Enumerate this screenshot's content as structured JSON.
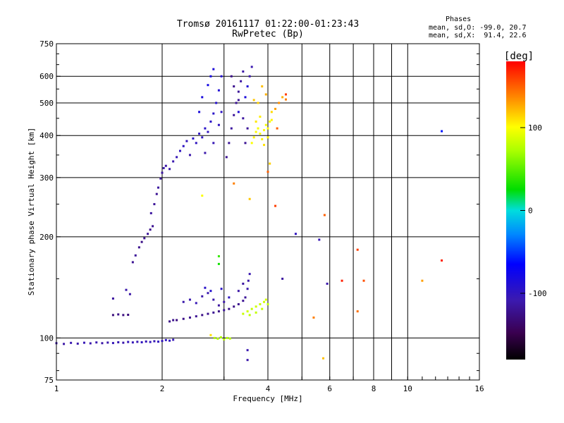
{
  "chart_data": {
    "type": "scatter",
    "title": "Tromsø 20161117 01:22:00-01:23:43",
    "subtitle": "RwPretec (Bp)",
    "xlabel": "Frequency [MHz]",
    "ylabel": "Stationary phase Virtual Height [km]",
    "x_scale": "log",
    "y_scale": "log",
    "xlim": [
      1,
      16
    ],
    "ylim": [
      75,
      750
    ],
    "x_ticks": [
      1,
      2,
      4,
      6,
      8,
      10,
      16
    ],
    "y_ticks": [
      75,
      100,
      200,
      300,
      400,
      500,
      600,
      750
    ],
    "grid": true,
    "stats": {
      "heading": "Phases",
      "line1": "mean, sd,O: -99.0, 20.7",
      "line2": "mean, sd,X:  91.4, 22.6"
    },
    "colorbar": {
      "label": "[deg]",
      "range": [
        -180,
        180
      ],
      "ticks": [
        -100,
        0,
        100
      ]
    },
    "series": [
      {
        "points": [
          [
            1.0,
            96.5,
            -110
          ],
          [
            1.05,
            96.0,
            -112
          ],
          [
            1.1,
            96.7,
            -108
          ],
          [
            1.15,
            96.2,
            -110
          ],
          [
            1.2,
            96.8,
            -105
          ],
          [
            1.25,
            96.4,
            -110
          ],
          [
            1.3,
            97.0,
            -108
          ],
          [
            1.35,
            96.5,
            -112
          ],
          [
            1.4,
            96.9,
            -109
          ],
          [
            1.45,
            96.6,
            -104
          ],
          [
            1.5,
            97.1,
            -106
          ],
          [
            1.55,
            96.8,
            -110
          ],
          [
            1.6,
            97.3,
            -102
          ],
          [
            1.65,
            97.0,
            -104
          ],
          [
            1.7,
            97.4,
            -105
          ],
          [
            1.75,
            97.1,
            -100
          ],
          [
            1.8,
            97.6,
            -104
          ],
          [
            1.85,
            97.3,
            -102
          ],
          [
            1.9,
            97.8,
            -106
          ],
          [
            1.95,
            97.5,
            -100
          ],
          [
            2.0,
            98.0,
            -102
          ],
          [
            2.05,
            98.6,
            -98
          ],
          [
            2.1,
            98.2,
            -100
          ],
          [
            2.15,
            98.8,
            -104
          ],
          [
            1.45,
            117,
            -130
          ],
          [
            1.5,
            117.5,
            -125
          ],
          [
            1.55,
            117,
            -128
          ],
          [
            1.6,
            117.2,
            -130
          ],
          [
            1.45,
            131,
            -115
          ],
          [
            1.58,
            139,
            -110
          ],
          [
            1.62,
            135,
            -112
          ],
          [
            1.65,
            168,
            -120
          ],
          [
            1.68,
            176,
            -118
          ],
          [
            1.72,
            186,
            -122
          ],
          [
            1.75,
            193,
            -125
          ],
          [
            1.78,
            198,
            -120
          ],
          [
            1.82,
            204,
            -118
          ],
          [
            1.85,
            210,
            -122
          ],
          [
            1.88,
            215,
            -120
          ],
          [
            1.86,
            235,
            -115
          ],
          [
            1.9,
            250,
            -118
          ],
          [
            1.93,
            268,
            -120
          ],
          [
            1.95,
            280,
            -115
          ],
          [
            1.98,
            298,
            -118
          ],
          [
            2.0,
            310,
            -115
          ],
          [
            2.02,
            320,
            -110
          ],
          [
            2.05,
            325,
            -112
          ],
          [
            2.1,
            318,
            -110
          ],
          [
            2.15,
            335,
            -108
          ],
          [
            2.2,
            345,
            -105
          ],
          [
            2.25,
            360,
            -100
          ],
          [
            2.3,
            372,
            -98
          ],
          [
            2.35,
            385,
            -102
          ],
          [
            2.4,
            350,
            -110
          ],
          [
            2.45,
            392,
            -95
          ],
          [
            2.5,
            380,
            -100
          ],
          [
            2.55,
            405,
            -98
          ],
          [
            2.6,
            395,
            -100
          ],
          [
            2.65,
            420,
            -95
          ],
          [
            2.7,
            410,
            -100
          ],
          [
            2.75,
            440,
            -96
          ],
          [
            2.8,
            465,
            -95
          ],
          [
            2.85,
            500,
            -92
          ],
          [
            2.9,
            545,
            -88
          ],
          [
            2.95,
            600,
            -90
          ],
          [
            2.55,
            470,
            -85
          ],
          [
            2.7,
            565,
            -80
          ],
          [
            2.75,
            600,
            -82
          ],
          [
            2.8,
            630,
            -86
          ],
          [
            2.6,
            520,
            -84
          ],
          [
            2.65,
            355,
            -110
          ],
          [
            2.8,
            380,
            -105
          ],
          [
            2.9,
            430,
            -100
          ],
          [
            2.95,
            470,
            -98
          ],
          [
            3.05,
            345,
            -120
          ],
          [
            3.1,
            380,
            -118
          ],
          [
            3.15,
            420,
            -115
          ],
          [
            3.2,
            460,
            -118
          ],
          [
            3.25,
            500,
            -120
          ],
          [
            3.3,
            540,
            -118
          ],
          [
            3.35,
            580,
            -115
          ],
          [
            3.4,
            620,
            -112
          ],
          [
            3.15,
            600,
            -125
          ],
          [
            3.2,
            560,
            -122
          ],
          [
            3.3,
            510,
            -118
          ],
          [
            3.4,
            450,
            -115
          ],
          [
            3.45,
            380,
            -120
          ],
          [
            3.5,
            420,
            -118
          ],
          [
            3.55,
            600,
            -110
          ],
          [
            3.6,
            640,
            -108
          ],
          [
            3.3,
            470,
            -90
          ],
          [
            3.45,
            520,
            -85
          ],
          [
            3.5,
            560,
            -88
          ],
          [
            2.1,
            112,
            -125
          ],
          [
            2.15,
            113,
            -122
          ],
          [
            2.2,
            113,
            -128
          ],
          [
            2.3,
            114,
            -125
          ],
          [
            2.4,
            115,
            -122
          ],
          [
            2.5,
            116,
            -120
          ],
          [
            2.6,
            117,
            -125
          ],
          [
            2.7,
            118,
            -122
          ],
          [
            2.8,
            119,
            -120
          ],
          [
            2.9,
            120,
            -125
          ],
          [
            3.0,
            121,
            -118
          ],
          [
            3.1,
            122,
            -122
          ],
          [
            3.2,
            124,
            -125
          ],
          [
            3.3,
            126,
            -122
          ],
          [
            3.4,
            129,
            -120
          ],
          [
            3.45,
            132,
            -118
          ],
          [
            2.3,
            128,
            -110
          ],
          [
            2.4,
            130,
            -108
          ],
          [
            2.5,
            127,
            -105
          ],
          [
            2.6,
            133,
            -110
          ],
          [
            2.7,
            136,
            -108
          ],
          [
            2.8,
            130,
            -110
          ],
          [
            2.9,
            125,
            -115
          ],
          [
            3.0,
            128,
            -112
          ],
          [
            3.5,
            140,
            -110
          ],
          [
            3.52,
            148,
            -112
          ],
          [
            3.55,
            155,
            -108
          ],
          [
            3.4,
            145,
            -115
          ],
          [
            3.3,
            138,
            -112
          ],
          [
            2.65,
            141,
            -95
          ],
          [
            2.75,
            138,
            -92
          ],
          [
            2.95,
            140,
            -96
          ],
          [
            3.1,
            132,
            -98
          ],
          [
            4.8,
            204,
            -100
          ],
          [
            5.6,
            196,
            -105
          ],
          [
            5.9,
            145,
            -110
          ],
          [
            4.4,
            150,
            -115
          ],
          [
            3.5,
            86,
            -110
          ],
          [
            3.5,
            92,
            -108
          ],
          [
            12.5,
            412,
            -60
          ]
        ]
      },
      {
        "points": [
          [
            3.6,
            380,
            100
          ],
          [
            3.65,
            395,
            105
          ],
          [
            3.7,
            410,
            102
          ],
          [
            3.75,
            420,
            98
          ],
          [
            3.8,
            405,
            100
          ],
          [
            3.85,
            390,
            104
          ],
          [
            3.9,
            415,
            100
          ],
          [
            3.95,
            430,
            98
          ],
          [
            4.0,
            420,
            102
          ],
          [
            4.05,
            440,
            100
          ],
          [
            4.1,
            445,
            104
          ],
          [
            3.7,
            440,
            108
          ],
          [
            3.8,
            455,
            106
          ],
          [
            3.9,
            375,
            110
          ],
          [
            4.0,
            395,
            105
          ],
          [
            4.1,
            470,
            112
          ],
          [
            3.65,
            510,
            118
          ],
          [
            3.75,
            500,
            115
          ],
          [
            3.85,
            560,
            120
          ],
          [
            3.95,
            530,
            125
          ],
          [
            4.2,
            480,
            130
          ],
          [
            4.3,
            500,
            135
          ],
          [
            4.4,
            520,
            125
          ],
          [
            4.5,
            512,
            140
          ],
          [
            4.25,
            420,
            150
          ],
          [
            4.05,
            330,
            115
          ],
          [
            3.55,
            259,
            118
          ],
          [
            3.4,
            118,
            82
          ],
          [
            3.5,
            120,
            85
          ],
          [
            3.6,
            122,
            80
          ],
          [
            3.7,
            124,
            84
          ],
          [
            3.8,
            126,
            82
          ],
          [
            3.9,
            128,
            85
          ],
          [
            4.0,
            126,
            80
          ],
          [
            3.55,
            117,
            78
          ],
          [
            3.7,
            119,
            80
          ],
          [
            3.85,
            122,
            82
          ],
          [
            3.95,
            130,
            86
          ],
          [
            2.82,
            100,
            75
          ],
          [
            2.88,
            99.5,
            76
          ],
          [
            2.94,
            100.5,
            74
          ],
          [
            3.0,
            99,
            76
          ],
          [
            3.06,
            100,
            75
          ],
          [
            3.12,
            99.6,
            77
          ],
          [
            4.2,
            247,
            160
          ],
          [
            5.8,
            232,
            150
          ],
          [
            5.75,
            87,
            120
          ],
          [
            5.4,
            115,
            140
          ],
          [
            6.5,
            148,
            170
          ],
          [
            7.2,
            183,
            160
          ],
          [
            7.5,
            148,
            155
          ],
          [
            7.2,
            120,
            145
          ],
          [
            11.0,
            148,
            130
          ],
          [
            12.5,
            170,
            170
          ],
          [
            2.75,
            102,
            110
          ],
          [
            4.5,
            530,
            160
          ],
          [
            2.9,
            175,
            40
          ],
          [
            2.9,
            166,
            30
          ],
          [
            2.6,
            265,
            100
          ],
          [
            3.2,
            288,
            140
          ],
          [
            4.0,
            312,
            150
          ]
        ]
      }
    ]
  }
}
